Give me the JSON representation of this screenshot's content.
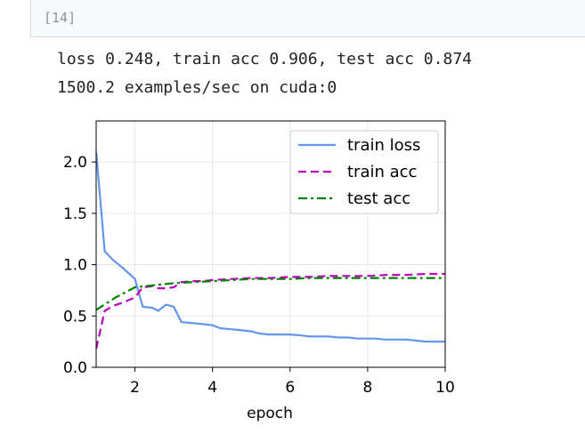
{
  "cell": {
    "prompt": "[14]"
  },
  "output": {
    "line1": "loss 0.248, train acc 0.906, test acc 0.874",
    "line2": "1500.2 examples/sec on cuda:0"
  },
  "chart_data": {
    "type": "line",
    "xlabel": "epoch",
    "ylabel": "",
    "xlim": [
      1,
      10
    ],
    "ylim": [
      0,
      2.4
    ],
    "xticks": [
      2,
      4,
      6,
      8,
      10
    ],
    "yticks": [
      0.0,
      0.5,
      1.0,
      1.5,
      2.0
    ],
    "xtick_labels": [
      "2",
      "4",
      "6",
      "8",
      "10"
    ],
    "ytick_labels": [
      "0.0",
      "0.5",
      "1.0",
      "1.5",
      "2.0"
    ],
    "grid": true,
    "legend_position": "top-right",
    "series": [
      {
        "name": "train loss",
        "color": "#6495ed",
        "style": "solid",
        "x": [
          1.0,
          1.22,
          1.45,
          1.68,
          2.0,
          2.2,
          2.45,
          2.6,
          2.8,
          3.0,
          3.2,
          3.5,
          3.75,
          4.0,
          4.2,
          4.5,
          4.75,
          5.0,
          5.2,
          5.45,
          5.75,
          6.0,
          6.3,
          6.5,
          6.75,
          7.0,
          7.25,
          7.5,
          7.75,
          8.0,
          8.2,
          8.45,
          8.75,
          9.0,
          9.25,
          9.5,
          9.75,
          10.0
        ],
        "y": [
          2.1,
          1.13,
          1.04,
          0.97,
          0.86,
          0.59,
          0.58,
          0.55,
          0.61,
          0.59,
          0.44,
          0.43,
          0.42,
          0.41,
          0.38,
          0.37,
          0.36,
          0.35,
          0.33,
          0.32,
          0.32,
          0.32,
          0.31,
          0.3,
          0.3,
          0.3,
          0.29,
          0.29,
          0.28,
          0.28,
          0.28,
          0.27,
          0.27,
          0.27,
          0.26,
          0.25,
          0.25,
          0.25
        ]
      },
      {
        "name": "train acc",
        "color": "#bf00bf",
        "style": "dashed",
        "x": [
          1.0,
          1.22,
          1.45,
          1.68,
          2.0,
          2.2,
          2.45,
          2.6,
          2.8,
          3.0,
          3.2,
          3.5,
          3.75,
          4.0,
          4.5,
          5.0,
          5.5,
          6.0,
          6.5,
          7.0,
          7.5,
          8.0,
          8.5,
          9.0,
          9.5,
          10.0
        ],
        "y": [
          0.18,
          0.55,
          0.6,
          0.63,
          0.68,
          0.78,
          0.79,
          0.77,
          0.77,
          0.78,
          0.83,
          0.84,
          0.84,
          0.85,
          0.86,
          0.87,
          0.87,
          0.88,
          0.88,
          0.89,
          0.89,
          0.89,
          0.9,
          0.9,
          0.91,
          0.91
        ]
      },
      {
        "name": "test acc",
        "color": "#008000",
        "style": "dashdot",
        "x": [
          1.0,
          1.5,
          2.0,
          2.5,
          3.0,
          3.5,
          4.0,
          4.5,
          5.0,
          5.5,
          6.0,
          6.5,
          7.0,
          7.5,
          8.0,
          8.5,
          9.0,
          9.5,
          10.0
        ],
        "y": [
          0.56,
          0.68,
          0.78,
          0.8,
          0.82,
          0.83,
          0.84,
          0.85,
          0.86,
          0.86,
          0.86,
          0.87,
          0.87,
          0.87,
          0.87,
          0.87,
          0.87,
          0.87,
          0.87
        ]
      }
    ]
  }
}
